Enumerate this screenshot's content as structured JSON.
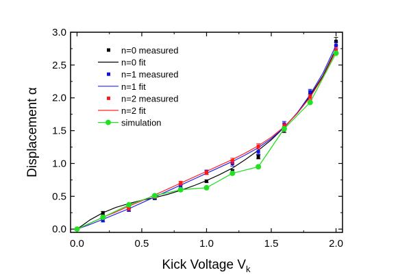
{
  "chart_data": {
    "type": "scatter",
    "xlabel": "Kick Voltage V",
    "xlabel_subscript": "k",
    "ylabel": "Displacement α",
    "xlim": [
      -0.05,
      2.05
    ],
    "ylim": [
      -0.05,
      3.0
    ],
    "xticks": [
      "0.0",
      "0.5",
      "1.0",
      "1.5",
      "2.0"
    ],
    "yticks": [
      "0.0",
      "0.5",
      "1.0",
      "1.5",
      "2.0",
      "2.5",
      "3.0"
    ],
    "grid": false,
    "legend_position": "top-left",
    "series": [
      {
        "name": "n=0 measured",
        "kind": "markers",
        "marker": "square",
        "color": "#000000",
        "x": [
          0.0,
          0.2,
          0.4,
          0.6,
          0.8,
          1.0,
          1.2,
          1.4,
          1.6,
          1.8,
          2.0
        ],
        "y": [
          0.0,
          0.24,
          0.35,
          0.47,
          0.6,
          0.73,
          0.88,
          1.1,
          1.51,
          2.07,
          2.86
        ],
        "err": [
          0.02,
          0.03,
          0.02,
          0.02,
          0.02,
          0.02,
          0.03,
          0.03,
          0.04,
          0.04,
          0.06
        ]
      },
      {
        "name": "n=0 fit",
        "kind": "line",
        "color": "#000000",
        "x": [
          0.0,
          0.1,
          0.2,
          0.3,
          0.4,
          0.5,
          0.6,
          0.7,
          0.8,
          0.9,
          1.0,
          1.1,
          1.2,
          1.3,
          1.4,
          1.5,
          1.6,
          1.7,
          1.8,
          1.9,
          2.0
        ],
        "y": [
          0.0,
          0.14,
          0.25,
          0.33,
          0.39,
          0.44,
          0.48,
          0.53,
          0.59,
          0.66,
          0.74,
          0.83,
          0.93,
          1.06,
          1.2,
          1.36,
          1.55,
          1.77,
          2.03,
          2.34,
          2.75
        ]
      },
      {
        "name": "n=1 measured",
        "kind": "markers",
        "marker": "square",
        "color": "#1010e0",
        "x": [
          0.0,
          0.2,
          0.4,
          0.6,
          0.8,
          1.0,
          1.2,
          1.4,
          1.6,
          1.8,
          2.0
        ],
        "y": [
          0.0,
          0.13,
          0.29,
          0.48,
          0.66,
          0.87,
          1.0,
          1.18,
          1.6,
          2.09,
          2.8
        ],
        "err": [
          0.02,
          0.02,
          0.02,
          0.02,
          0.03,
          0.03,
          0.04,
          0.04,
          0.04,
          0.04,
          0.05
        ]
      },
      {
        "name": "n=1 fit",
        "kind": "line",
        "color": "#2020f0",
        "x": [
          0.0,
          0.1,
          0.2,
          0.3,
          0.4,
          0.5,
          0.6,
          0.7,
          0.8,
          0.9,
          1.0,
          1.1,
          1.2,
          1.3,
          1.4,
          1.5,
          1.6,
          1.7,
          1.8,
          1.9,
          2.0
        ],
        "y": [
          0.0,
          0.07,
          0.15,
          0.23,
          0.31,
          0.4,
          0.49,
          0.58,
          0.67,
          0.76,
          0.85,
          0.94,
          1.03,
          1.13,
          1.24,
          1.38,
          1.55,
          1.77,
          2.05,
          2.38,
          2.8
        ]
      },
      {
        "name": "n=2 measured",
        "kind": "markers",
        "marker": "square",
        "color": "#ff1a1a",
        "x": [
          0.0,
          0.2,
          0.4,
          0.6,
          0.8,
          1.0,
          1.2,
          1.4,
          1.6,
          1.8,
          2.0
        ],
        "y": [
          0.0,
          0.17,
          0.31,
          0.5,
          0.7,
          0.86,
          1.04,
          1.26,
          1.57,
          2.01,
          2.72
        ],
        "err": [
          0.02,
          0.02,
          0.02,
          0.03,
          0.03,
          0.03,
          0.04,
          0.04,
          0.04,
          0.04,
          0.05
        ]
      },
      {
        "name": "n=2 fit",
        "kind": "line",
        "color": "#ff2020",
        "x": [
          0.0,
          0.1,
          0.2,
          0.3,
          0.4,
          0.5,
          0.6,
          0.7,
          0.8,
          0.9,
          1.0,
          1.1,
          1.2,
          1.3,
          1.4,
          1.5,
          1.6,
          1.7,
          1.8,
          1.9,
          2.0
        ],
        "y": [
          0.0,
          0.09,
          0.18,
          0.26,
          0.35,
          0.43,
          0.52,
          0.61,
          0.7,
          0.79,
          0.88,
          0.97,
          1.06,
          1.16,
          1.27,
          1.4,
          1.56,
          1.76,
          2.01,
          2.32,
          2.72
        ]
      },
      {
        "name": "simulation",
        "kind": "line+markers",
        "marker": "circle",
        "color": "#22e022",
        "x": [
          0.0,
          0.2,
          0.4,
          0.6,
          0.8,
          1.0,
          1.2,
          1.4,
          1.6,
          1.8,
          2.0
        ],
        "y": [
          0.0,
          0.18,
          0.37,
          0.51,
          0.6,
          0.63,
          0.85,
          0.95,
          1.53,
          1.93,
          2.68
        ]
      }
    ]
  }
}
